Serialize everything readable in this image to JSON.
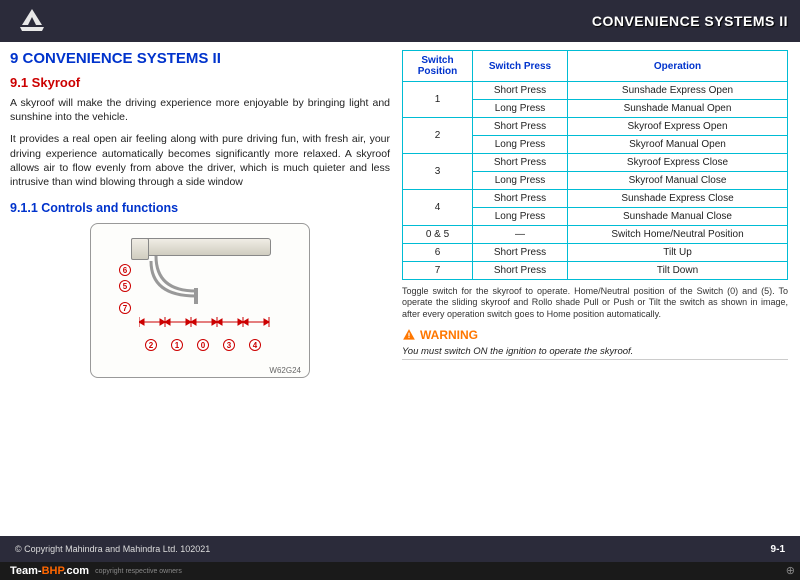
{
  "header": {
    "title": "CONVENIENCE SYSTEMS II"
  },
  "chapter": {
    "num_title": "9 CONVENIENCE SYSTEMS II"
  },
  "section": {
    "num_title": "9.1 Skyroof"
  },
  "para1": "A skyroof will make the driving experience more enjoyable by bringing light and sunshine into the vehicle.",
  "para2": "It provides a real open air feeling along with pure driving fun, with fresh air, your driving experience automatically becomes significantly more relaxed. A skyroof allows air to flow evenly from above the driver, which is much quieter and less intrusive than wind blowing through a side window",
  "subsection": {
    "num_title": "9.1.1 Controls and functions"
  },
  "diagram": {
    "code": "W62G24",
    "nums": [
      "6",
      "5",
      "7",
      "2",
      "1",
      "0",
      "3",
      "4"
    ]
  },
  "table": {
    "headers": {
      "c1": "Switch Position",
      "c2": "Switch Press",
      "c3": "Operation"
    },
    "rows": [
      {
        "pos": "1",
        "r1p": "Short Press",
        "r1o": "Sunshade Express Open",
        "r2p": "Long Press",
        "r2o": "Sunshade Manual Open"
      },
      {
        "pos": "2",
        "r1p": "Short Press",
        "r1o": "Skyroof Express Open",
        "r2p": "Long Press",
        "r2o": "Skyroof Manual Open"
      },
      {
        "pos": "3",
        "r1p": "Short Press",
        "r1o": "Skyroof Express Close",
        "r2p": "Long Press",
        "r2o": "Skyroof Manual Close"
      },
      {
        "pos": "4",
        "r1p": "Short Press",
        "r1o": "Sunshade Express Close",
        "r2p": "Long Press",
        "r2o": "Sunshade Manual Close"
      },
      {
        "pos": "0 & 5",
        "r1p": "—",
        "r1o": "Switch Home/Neutral Position",
        "single": true
      },
      {
        "pos": "6",
        "r1p": "Short Press",
        "r1o": "Tilt Up",
        "single": true
      },
      {
        "pos": "7",
        "r1p": "Short Press",
        "r1o": "Tilt Down",
        "single": true
      }
    ]
  },
  "note": "Toggle switch for the skyroof to operate. Home/Neutral position of the Switch (0) and (5). To operate the sliding skyroof and Rollo shade Pull or Push or Tilt the switch as shown in image, after every operation switch goes to Home position automatically.",
  "warning": {
    "label": "WARNING",
    "text": "You must switch ON the ignition to operate the skyroof."
  },
  "footer": {
    "copyright": "© Copyright Mahindra and Mahindra Ltd. 102021",
    "page": "9-1"
  },
  "watermark": {
    "p1": "Team-",
    "p2": "BHP",
    "p3": ".com",
    "sub": "copyright respective owners"
  }
}
